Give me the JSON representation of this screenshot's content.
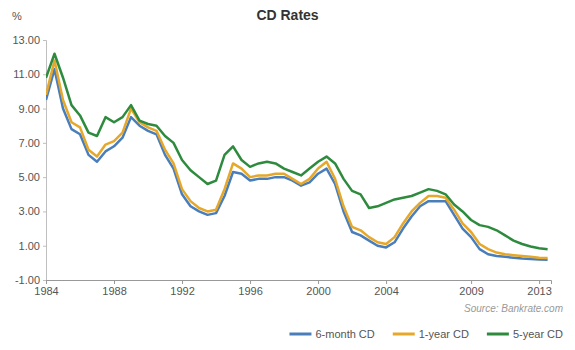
{
  "chart_data": {
    "type": "line",
    "title": "CD Rates",
    "y_label": "%",
    "source": "Source: Bankrate.com",
    "x": [
      1984.0,
      1984.5,
      1985.0,
      1985.5,
      1986.0,
      1986.5,
      1987.0,
      1987.5,
      1988.0,
      1988.5,
      1989.0,
      1989.5,
      1990.0,
      1990.5,
      1991.0,
      1991.5,
      1992.0,
      1992.5,
      1993.0,
      1993.5,
      1994.0,
      1994.5,
      1995.0,
      1995.5,
      1996.0,
      1996.5,
      1997.0,
      1997.5,
      1998.0,
      1998.5,
      1999.0,
      1999.5,
      2000.0,
      2000.5,
      2001.0,
      2001.5,
      2002.0,
      2002.5,
      2003.0,
      2003.5,
      2004.0,
      2004.5,
      2005.0,
      2005.5,
      2006.0,
      2006.5,
      2007.0,
      2007.5,
      2008.0,
      2008.5,
      2009.0,
      2009.5,
      2010.0,
      2010.5,
      2011.0,
      2011.5,
      2012.0,
      2012.5,
      2013.0,
      2013.5
    ],
    "series": [
      {
        "name": "6-month CD",
        "color": "#4a7ebb",
        "values": [
          9.5,
          11.3,
          9.0,
          7.8,
          7.5,
          6.3,
          5.9,
          6.5,
          6.8,
          7.3,
          8.5,
          8.0,
          7.7,
          7.5,
          6.3,
          5.5,
          4.0,
          3.3,
          3.0,
          2.8,
          2.9,
          3.9,
          5.3,
          5.2,
          4.8,
          4.9,
          4.9,
          5.0,
          5.0,
          4.8,
          4.5,
          4.7,
          5.2,
          5.5,
          4.6,
          3.0,
          1.8,
          1.6,
          1.3,
          1.0,
          0.9,
          1.2,
          2.0,
          2.7,
          3.3,
          3.6,
          3.6,
          3.6,
          2.8,
          2.0,
          1.5,
          0.8,
          0.5,
          0.4,
          0.35,
          0.3,
          0.25,
          0.22,
          0.2,
          0.18
        ]
      },
      {
        "name": "1-year CD",
        "color": "#e6a82a",
        "values": [
          9.8,
          11.8,
          9.5,
          8.2,
          7.9,
          6.6,
          6.2,
          6.9,
          7.1,
          7.6,
          9.0,
          8.2,
          7.9,
          7.7,
          6.6,
          5.8,
          4.3,
          3.6,
          3.2,
          3.0,
          3.1,
          4.3,
          5.8,
          5.5,
          5.0,
          5.1,
          5.1,
          5.2,
          5.2,
          4.9,
          4.6,
          4.9,
          5.5,
          5.9,
          4.9,
          3.3,
          2.1,
          1.9,
          1.5,
          1.2,
          1.1,
          1.5,
          2.3,
          3.0,
          3.5,
          3.9,
          3.9,
          3.8,
          3.1,
          2.3,
          1.8,
          1.1,
          0.8,
          0.6,
          0.5,
          0.45,
          0.4,
          0.35,
          0.3,
          0.28
        ]
      },
      {
        "name": "5-year CD",
        "color": "#2e8b3e",
        "values": [
          10.8,
          12.2,
          10.8,
          9.2,
          8.6,
          7.6,
          7.4,
          8.5,
          8.2,
          8.5,
          9.2,
          8.3,
          8.1,
          8.0,
          7.4,
          7.0,
          6.0,
          5.4,
          5.0,
          4.6,
          4.8,
          6.3,
          6.8,
          6.0,
          5.6,
          5.8,
          5.9,
          5.8,
          5.5,
          5.3,
          5.1,
          5.5,
          5.9,
          6.2,
          5.8,
          4.9,
          4.2,
          4.0,
          3.2,
          3.3,
          3.5,
          3.7,
          3.8,
          3.9,
          4.1,
          4.3,
          4.2,
          4.0,
          3.4,
          3.0,
          2.5,
          2.2,
          2.1,
          1.9,
          1.6,
          1.3,
          1.1,
          0.95,
          0.85,
          0.8
        ]
      }
    ],
    "xlim": [
      1984,
      2013.7
    ],
    "xticks": [
      1984,
      1988,
      1992,
      1996,
      2000,
      2004,
      2009,
      2013
    ],
    "ylim": [
      -1,
      13
    ],
    "yticks": [
      {
        "value": -1,
        "label": "-1.00"
      },
      {
        "value": 1,
        "label": "1.00"
      },
      {
        "value": 3,
        "label": "3.00"
      },
      {
        "value": 5,
        "label": "5.00"
      },
      {
        "value": 7,
        "label": "7.00"
      },
      {
        "value": 9,
        "label": "9.00"
      },
      {
        "value": 11,
        "label": "11.00"
      },
      {
        "value": 13,
        "label": "13.00"
      }
    ],
    "grid": false,
    "legend": "bottom-right"
  }
}
